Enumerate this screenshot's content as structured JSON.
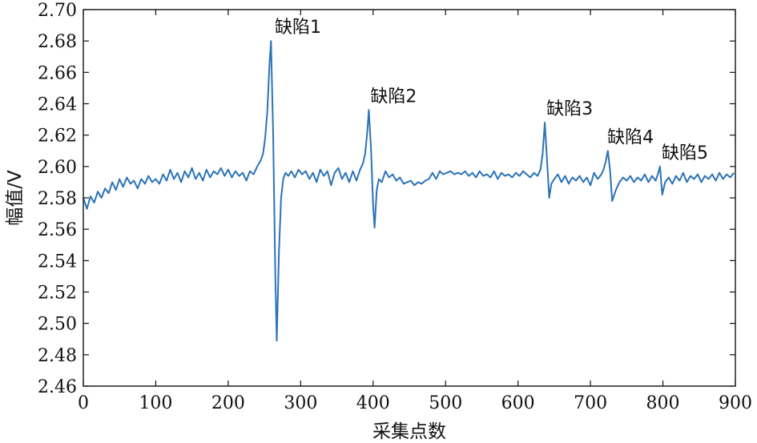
{
  "chart_data": {
    "type": "line",
    "title": "",
    "xlabel": "采集点数",
    "ylabel": "幅值/V",
    "xlim": [
      0,
      900
    ],
    "ylim": [
      2.46,
      2.7
    ],
    "xticks": [
      0,
      100,
      200,
      300,
      400,
      500,
      600,
      700,
      800,
      900
    ],
    "xtick_labels": [
      "0",
      "100",
      "200",
      "300",
      "400",
      "500",
      "600",
      "700",
      "800",
      "900"
    ],
    "yticks": [
      2.46,
      2.48,
      2.5,
      2.52,
      2.54,
      2.56,
      2.58,
      2.6,
      2.62,
      2.64,
      2.66,
      2.68,
      2.7
    ],
    "ytick_labels": [
      "2.46",
      "2.48",
      "2.50",
      "2.52",
      "2.54",
      "2.56",
      "2.58",
      "2.60",
      "2.62",
      "2.64",
      "2.66",
      "2.68",
      "2.70"
    ],
    "grid": false,
    "line_color": "#2b73b8",
    "series": [
      {
        "x": [
          0,
          5,
          10,
          15,
          20,
          25,
          30,
          35,
          40,
          45,
          50,
          55,
          60,
          65,
          70,
          75,
          80,
          85,
          90,
          95,
          100,
          105,
          110,
          115,
          120,
          125,
          130,
          135,
          140,
          145,
          150,
          155,
          160,
          165,
          170,
          175,
          180,
          185,
          190,
          195,
          200,
          205,
          210,
          215,
          220,
          225,
          230,
          235,
          240,
          245,
          248,
          251,
          254,
          257,
          259,
          262,
          265,
          267,
          270,
          273,
          276,
          279,
          283,
          287,
          292,
          297,
          302,
          307,
          312,
          317,
          322,
          327,
          332,
          337,
          342,
          347,
          352,
          357,
          362,
          367,
          372,
          377,
          382,
          386,
          389,
          392,
          394,
          397,
          400,
          402,
          405,
          408,
          412,
          417,
          422,
          427,
          432,
          437,
          442,
          447,
          452,
          457,
          462,
          467,
          472,
          477,
          482,
          487,
          492,
          497,
          502,
          507,
          512,
          517,
          522,
          527,
          532,
          537,
          542,
          547,
          552,
          557,
          562,
          567,
          572,
          577,
          582,
          587,
          592,
          597,
          602,
          607,
          612,
          617,
          622,
          627,
          631,
          634,
          637,
          640,
          643,
          646,
          650,
          655,
          660,
          665,
          670,
          675,
          680,
          685,
          690,
          695,
          700,
          705,
          710,
          715,
          718,
          721,
          724,
          727,
          730,
          735,
          740,
          745,
          750,
          755,
          760,
          765,
          770,
          775,
          780,
          785,
          790,
          793,
          796,
          799,
          803,
          808,
          813,
          818,
          823,
          828,
          833,
          838,
          843,
          848,
          853,
          858,
          863,
          868,
          873,
          878,
          883,
          888,
          893,
          898
        ],
        "y": [
          2.58,
          2.573,
          2.581,
          2.577,
          2.584,
          2.58,
          2.586,
          2.583,
          2.59,
          2.585,
          2.592,
          2.587,
          2.593,
          2.589,
          2.591,
          2.586,
          2.592,
          2.589,
          2.594,
          2.59,
          2.592,
          2.589,
          2.595,
          2.591,
          2.598,
          2.592,
          2.596,
          2.59,
          2.597,
          2.593,
          2.599,
          2.592,
          2.596,
          2.591,
          2.598,
          2.593,
          2.597,
          2.595,
          2.599,
          2.594,
          2.598,
          2.593,
          2.597,
          2.594,
          2.596,
          2.591,
          2.597,
          2.595,
          2.6,
          2.604,
          2.608,
          2.618,
          2.635,
          2.665,
          2.68,
          2.62,
          2.53,
          2.489,
          2.545,
          2.58,
          2.592,
          2.596,
          2.594,
          2.597,
          2.593,
          2.598,
          2.595,
          2.597,
          2.592,
          2.596,
          2.59,
          2.598,
          2.594,
          2.597,
          2.588,
          2.596,
          2.599,
          2.592,
          2.596,
          2.59,
          2.597,
          2.591,
          2.598,
          2.602,
          2.608,
          2.622,
          2.636,
          2.612,
          2.575,
          2.561,
          2.585,
          2.592,
          2.59,
          2.597,
          2.593,
          2.595,
          2.591,
          2.593,
          2.589,
          2.59,
          2.591,
          2.588,
          2.59,
          2.589,
          2.591,
          2.592,
          2.596,
          2.592,
          2.597,
          2.595,
          2.596,
          2.597,
          2.595,
          2.596,
          2.595,
          2.597,
          2.594,
          2.596,
          2.593,
          2.597,
          2.594,
          2.595,
          2.593,
          2.597,
          2.592,
          2.596,
          2.594,
          2.595,
          2.593,
          2.596,
          2.594,
          2.597,
          2.595,
          2.593,
          2.596,
          2.594,
          2.598,
          2.608,
          2.628,
          2.605,
          2.58,
          2.589,
          2.592,
          2.595,
          2.59,
          2.594,
          2.589,
          2.593,
          2.591,
          2.594,
          2.59,
          2.593,
          2.588,
          2.596,
          2.592,
          2.595,
          2.598,
          2.603,
          2.61,
          2.598,
          2.578,
          2.585,
          2.59,
          2.593,
          2.591,
          2.594,
          2.59,
          2.593,
          2.591,
          2.595,
          2.59,
          2.594,
          2.591,
          2.595,
          2.6,
          2.582,
          2.59,
          2.593,
          2.589,
          2.594,
          2.591,
          2.596,
          2.59,
          2.594,
          2.592,
          2.595,
          2.59,
          2.594,
          2.592,
          2.595,
          2.591,
          2.596,
          2.592,
          2.595,
          2.593,
          2.596
        ]
      }
    ],
    "annotations": [
      {
        "text": "缺陷1",
        "x": 262,
        "y": 2.68
      },
      {
        "text": "缺陷2",
        "x": 394,
        "y": 2.636
      },
      {
        "text": "缺陷3",
        "x": 637,
        "y": 2.628
      },
      {
        "text": "缺陷4",
        "x": 721,
        "y": 2.61
      },
      {
        "text": "缺陷5",
        "x": 796,
        "y": 2.6
      }
    ]
  }
}
